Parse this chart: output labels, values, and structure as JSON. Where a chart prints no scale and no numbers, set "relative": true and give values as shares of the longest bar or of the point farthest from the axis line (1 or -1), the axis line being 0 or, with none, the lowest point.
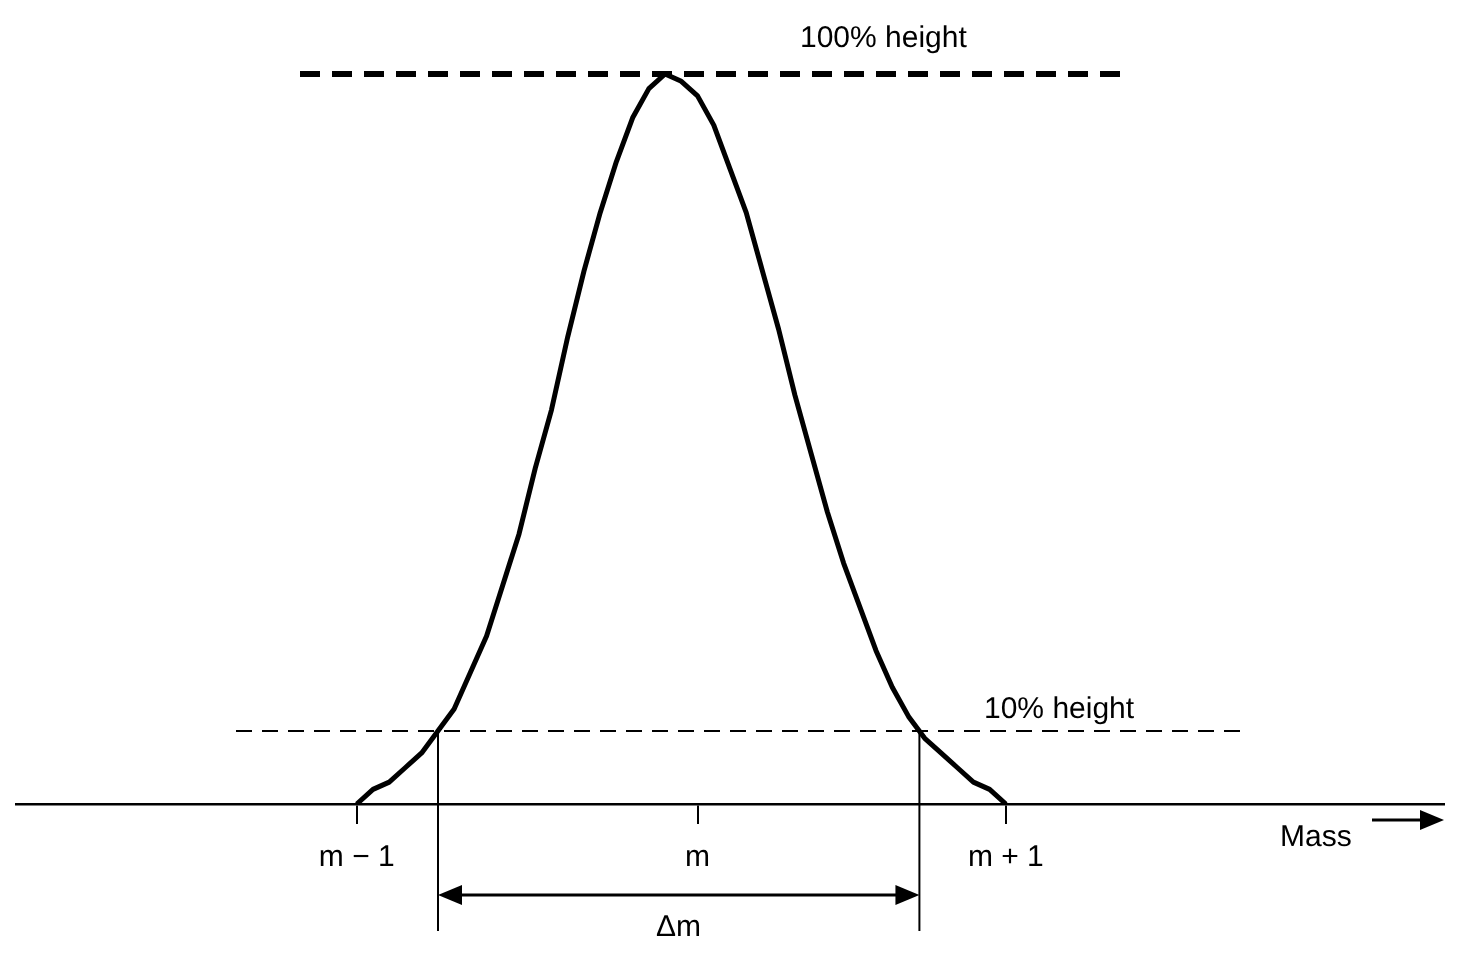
{
  "chart_data": {
    "type": "line",
    "relative": true,
    "xlabel": "Mass",
    "marker": "none",
    "line_style": "solid",
    "grid": false,
    "legend": false,
    "categories": [
      null,
      null,
      null,
      null,
      null,
      null,
      null,
      null,
      null,
      null,
      null,
      null,
      null,
      null,
      null,
      null,
      null,
      null,
      null,
      null,
      null,
      "m − 1",
      null,
      null,
      null,
      null,
      null,
      null,
      null,
      null,
      null,
      null,
      null,
      null,
      null,
      null,
      null,
      null,
      null,
      null,
      null,
      null,
      "m",
      null,
      null,
      null,
      null,
      null,
      null,
      null,
      null,
      null,
      null,
      null,
      null,
      null,
      null,
      null,
      null,
      null,
      null,
      "m + 1",
      null,
      null,
      null,
      null,
      null,
      null,
      null,
      null,
      null,
      null,
      null,
      null,
      null,
      null,
      null,
      null,
      null,
      null,
      null,
      null,
      null,
      null,
      null,
      null,
      null,
      null,
      null
    ],
    "series": [
      {
        "color": "#000000",
        "values": [
          null,
          null,
          null,
          null,
          null,
          null,
          null,
          null,
          null,
          null,
          null,
          null,
          null,
          null,
          null,
          null,
          null,
          null,
          null,
          null,
          null,
          0,
          0.02,
          0.03,
          0.05,
          0.07,
          0.1,
          0.13,
          0.18,
          0.23,
          0.3,
          0.37,
          0.46,
          0.54,
          0.64,
          0.73,
          0.81,
          0.88,
          0.94,
          0.98,
          1,
          0.99,
          0.97,
          0.93,
          0.87,
          0.81,
          0.73,
          0.65,
          0.56,
          0.48,
          0.4,
          0.33,
          0.27,
          0.21,
          0.16,
          0.12,
          0.09,
          0.07,
          0.05,
          0.03,
          0.02,
          0,
          null,
          null,
          null,
          null,
          null,
          null,
          null,
          null,
          null,
          null,
          null,
          null,
          null,
          null,
          null,
          null,
          null,
          null,
          null,
          null,
          null,
          null,
          null,
          null,
          null,
          null,
          null
        ]
      }
    ],
    "ref_lines": [
      {
        "axis": "y",
        "value": 1,
        "label": "100% height",
        "line_style": "dashed"
      },
      {
        "axis": "y",
        "value": 0.1,
        "label": "10% height",
        "line_style": "dashed"
      }
    ],
    "annotations": [
      "Δm"
    ]
  }
}
